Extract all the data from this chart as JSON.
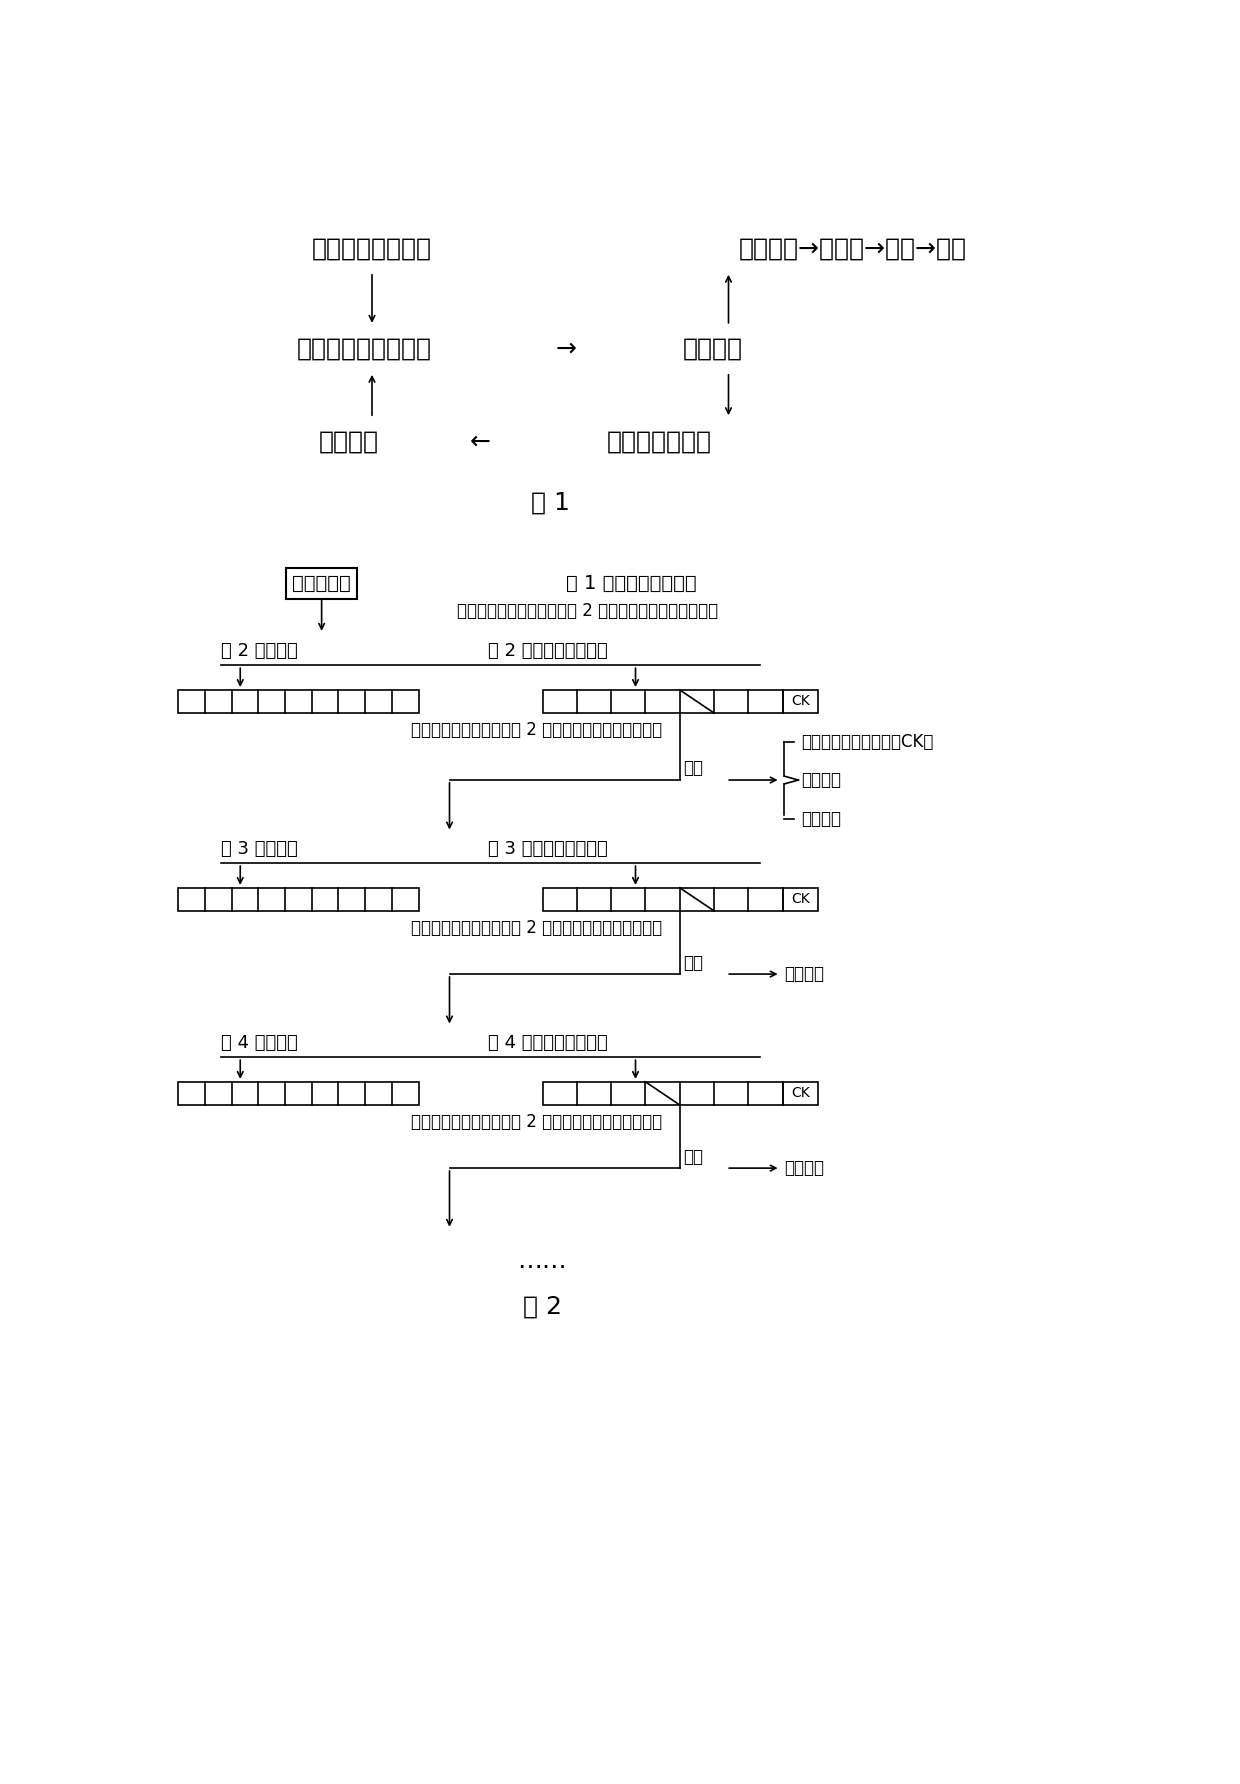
{
  "fig1_title": "图 1",
  "fig2_title": "图 2",
  "bg_color": "#ffffff",
  "text_color": "#000000",
  "fig1": {
    "row1_left": "水稻温敏核不育系",
    "row1_right": "核心种子→原原种→原种→制种",
    "row3_left": "自然光温条件下鉴定",
    "row3_arrow": "→",
    "row3_right": "当选株系",
    "row5_left": "多个株系",
    "row5_arrow": "←",
    "row5_right": "选多个优良单株"
  },
  "fig2": {
    "start_box": "温敏不育系",
    "start_right": "第 1 年特殊生态区繁殖",
    "desc1": "选多个单株，每个单株分成 2 份，下季分别形成多个株系",
    "y2_left": "第 2 年制种区",
    "y2_right": "第 2 年特殊生态区繁殖",
    "desc2": "选多个单株，每单株分成 2 份，下季分别形成多个株系",
    "mixcollect": "混收",
    "ck_line1": "冷藏保存，用作对照（CK）",
    "ck_line2": "综合鉴定",
    "ck_line3": "核心种子",
    "y3_left": "第 3 年制种区",
    "y3_right": "第 3 年特殊生态区繁殖",
    "desc3": "选多个单株，每单株分成 2 份，下季分别形成多个株系",
    "mixcollect3": "混收",
    "hexin3": "核心种子",
    "y4_left": "第 4 年制种区",
    "y4_right": "第 4 年特殊生态区繁殖",
    "desc4": "选多个单株，每单株分成 2 份，下季分别形成多个株系",
    "mixcollect4": "混收",
    "hexin4": "核心种子",
    "dots": "……",
    "ck": "CK"
  }
}
